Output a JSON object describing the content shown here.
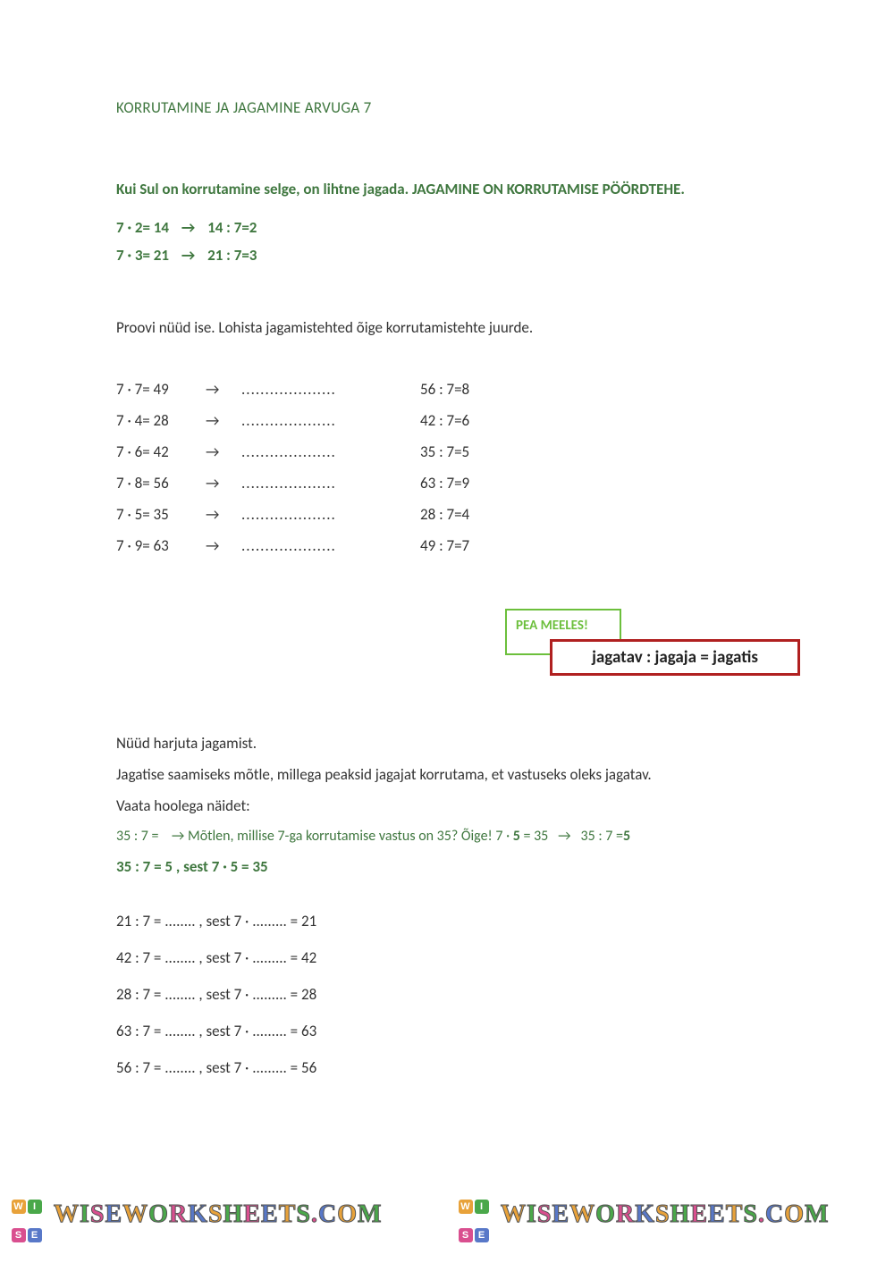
{
  "title": "KORRUTAMINE JA JAGAMINE ARVUGA 7",
  "intro": "Kui Sul on korrutamine selge, on lihtne jagada. JAGAMINE ON KORRUTAMISE PÖÖRDTEHE.",
  "examples": [
    {
      "mult": "7 · 2= 14",
      "div": "14 : 7=2"
    },
    {
      "mult": "7 · 3= 21",
      "div": "21 : 7=3"
    }
  ],
  "instruction1": "Proovi nüüd ise. Lohista jagamistehted õige korrutamistehte juurde.",
  "blank": "....................",
  "exercise_rows": [
    {
      "mult": "7 · 7= 49",
      "div": "56 : 7=8"
    },
    {
      "mult": "7 · 4= 28",
      "div": "42 : 7=6"
    },
    {
      "mult": "7 · 6= 42",
      "div": "35 : 7=5"
    },
    {
      "mult": "7 · 8= 56",
      "div": "63 : 7=9"
    },
    {
      "mult": "7 · 5= 35",
      "div": "28 : 7=4"
    },
    {
      "mult": "7 · 9= 63",
      "div": "49 : 7=7"
    }
  ],
  "callout_green": "PEA MEELES!",
  "callout_red": "jagatav : jagaja = jagatis",
  "section2": {
    "p1": "Nüüd harjuta jagamist.",
    "p2": "Jagatise saamiseks mõtle, millega peaksid jagajat korrutama, et vastuseks oleks jagatav.",
    "p3": "Vaata hoolega näidet:",
    "green_example_prefix": "35 : 7 =",
    "green_example_text": "Mõtlen, millise 7-ga korrutamise vastus on 35?  Õige!   7 ·",
    "green_example_bold1": "5",
    "green_example_mid": " = 35",
    "green_example_tail": "35 : 7 =",
    "green_example_bold2": "5",
    "green_bold_line": "35 : 7 = 5 , sest 7 · 5 = 35"
  },
  "practice": [
    "21 : 7 = ........ , sest  7 · ......... = 21",
    "42 : 7 = ........ , sest  7 · ......... = 42",
    "28 : 7 = ........ , sest  7 · ......... = 28",
    "63 : 7 = ........ , sest  7 · ......... = 63",
    "56 : 7 = ........ , sest  7 · ......... = 56"
  ],
  "arrow": "→",
  "watermark": "WISEWORKSHEETS.COM",
  "colors": {
    "green": "#3f773f",
    "lime": "#6cbf3c",
    "red": "#b02020",
    "text": "#333333"
  }
}
